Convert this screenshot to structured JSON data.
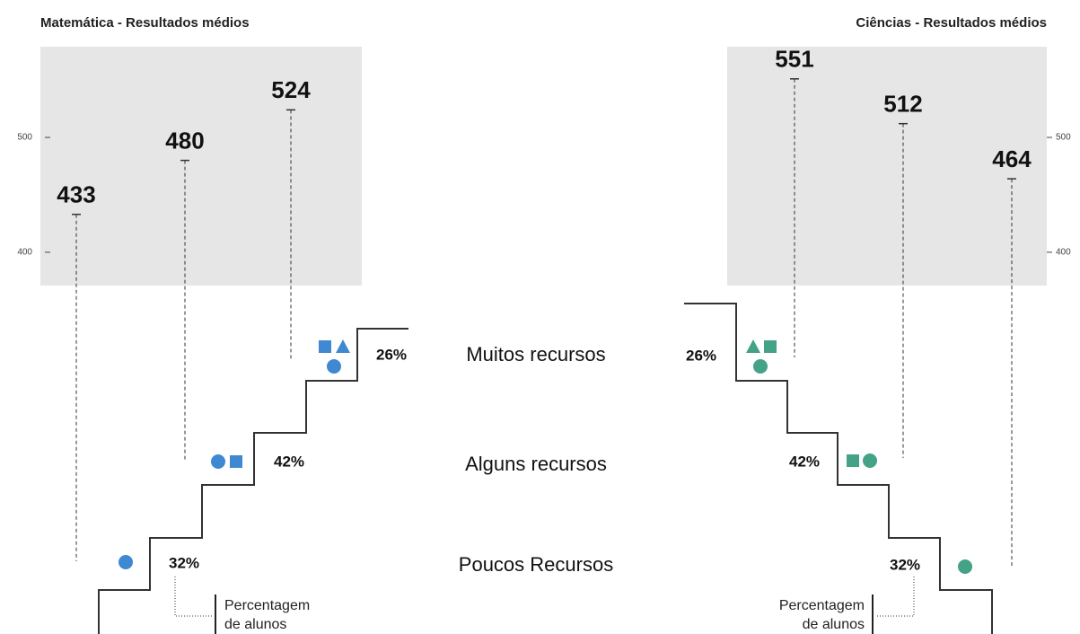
{
  "chart_data": {
    "type": "stair",
    "categories": [
      "Poucos Recursos",
      "Alguns recursos",
      "Muitos recursos"
    ],
    "shares": [
      32,
      42,
      26
    ],
    "share_labels": [
      "32%",
      "42%",
      "26%"
    ],
    "note": [
      "Percentagem",
      "de alunos"
    ],
    "panels": [
      {
        "title": "Matemática - Resultados médios",
        "values": [
          433,
          480,
          524
        ],
        "color": "#3f88d2",
        "ylim": [
          371,
          579
        ],
        "yticks": [
          400,
          500
        ]
      },
      {
        "title": "Ciências - Resultados médios",
        "values": [
          464,
          512,
          551
        ],
        "color": "#44a287",
        "ylim": [
          371,
          579
        ],
        "yticks": [
          400,
          500
        ]
      }
    ]
  }
}
